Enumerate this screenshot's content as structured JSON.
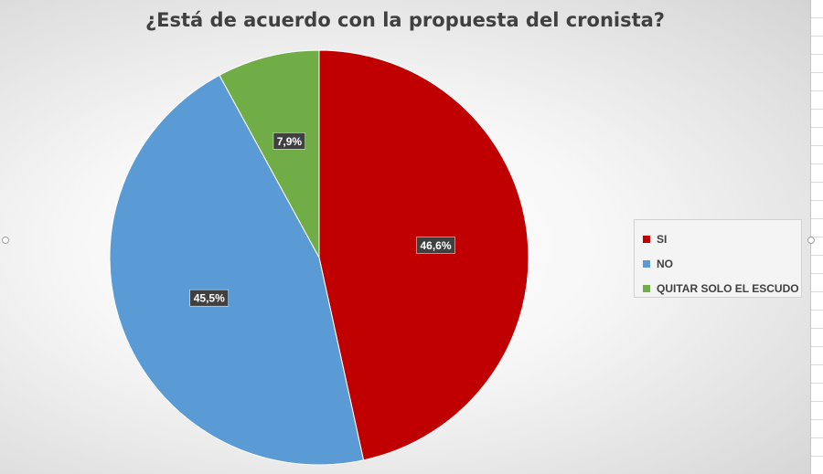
{
  "chart_data": {
    "type": "pie",
    "title": "¿Está de acuerdo con la propuesta del cronista?",
    "categories": [
      "SI",
      "NO",
      "QUITAR SOLO EL ESCUDO"
    ],
    "values": [
      46.6,
      45.5,
      7.9
    ],
    "data_labels": [
      "46,6%",
      "45,5%",
      "7,9%"
    ],
    "colors": [
      "#c00000",
      "#5b9bd5",
      "#70ad47"
    ],
    "legend_position": "right"
  }
}
